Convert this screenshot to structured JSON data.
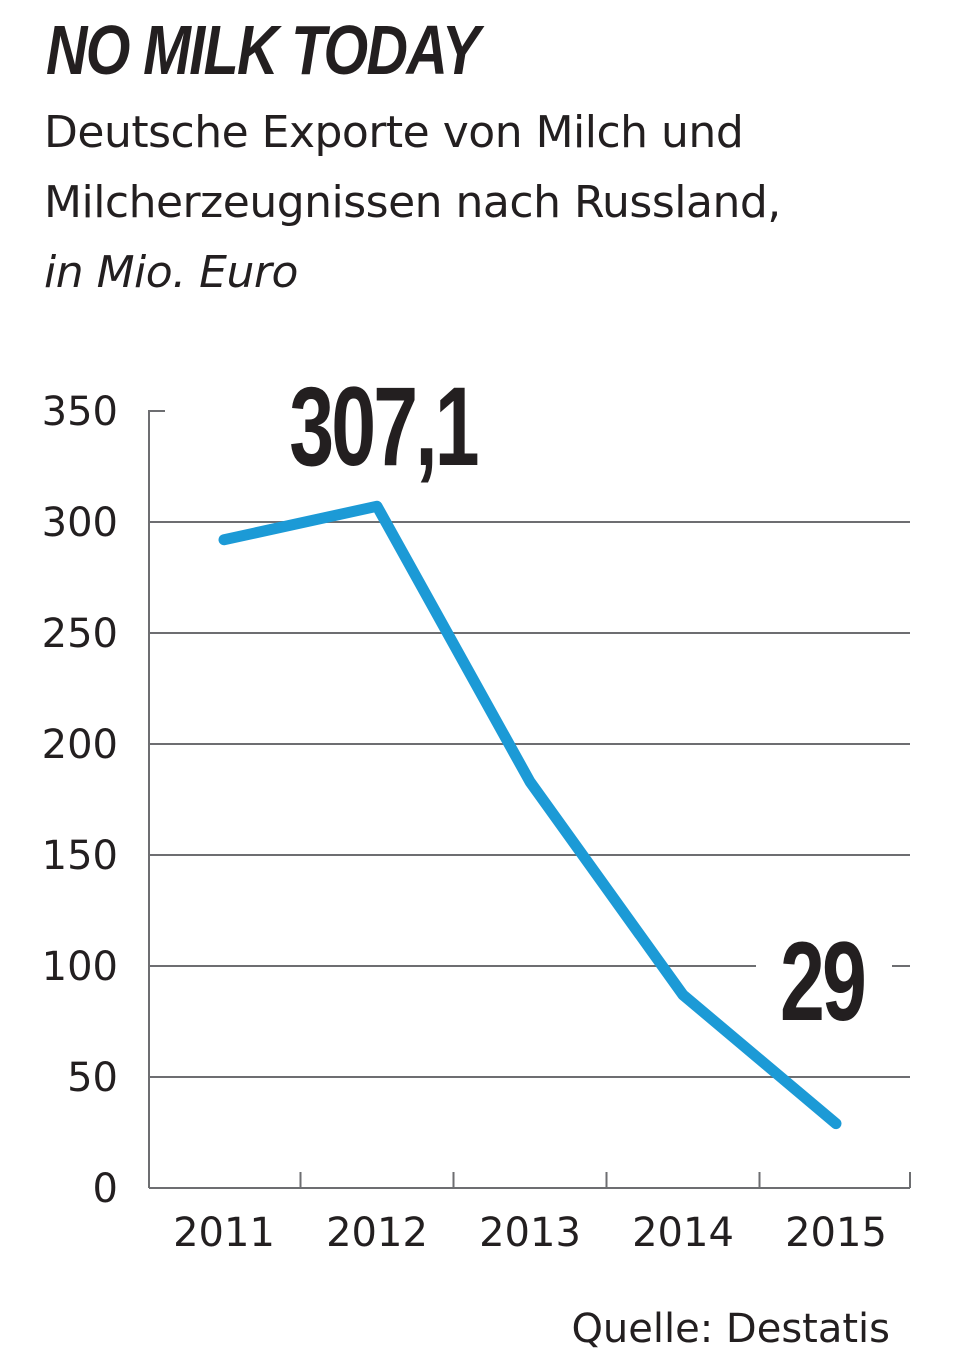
{
  "chart_data": {
    "type": "line",
    "title": "NO MILK TODAY",
    "subtitle": "Deutsche Exporte von Milch und Milcherzeugnissen nach Russland,",
    "unit": "in Mio. Euro",
    "categories": [
      "2011",
      "2012",
      "2013",
      "2014",
      "2015"
    ],
    "series": [
      {
        "values": [
          292,
          307.1,
          183,
          87,
          29
        ],
        "color": "#1c9ad6"
      }
    ],
    "y_ticks": [
      "0",
      "50",
      "100",
      "150",
      "200",
      "250",
      "300",
      "350"
    ],
    "ylim": [
      0,
      350
    ],
    "grid": true,
    "annotations": [
      {
        "text": "307,1",
        "category": "2012"
      },
      {
        "text": "29",
        "category": "2015"
      }
    ],
    "source": "Quelle: Destatis"
  }
}
